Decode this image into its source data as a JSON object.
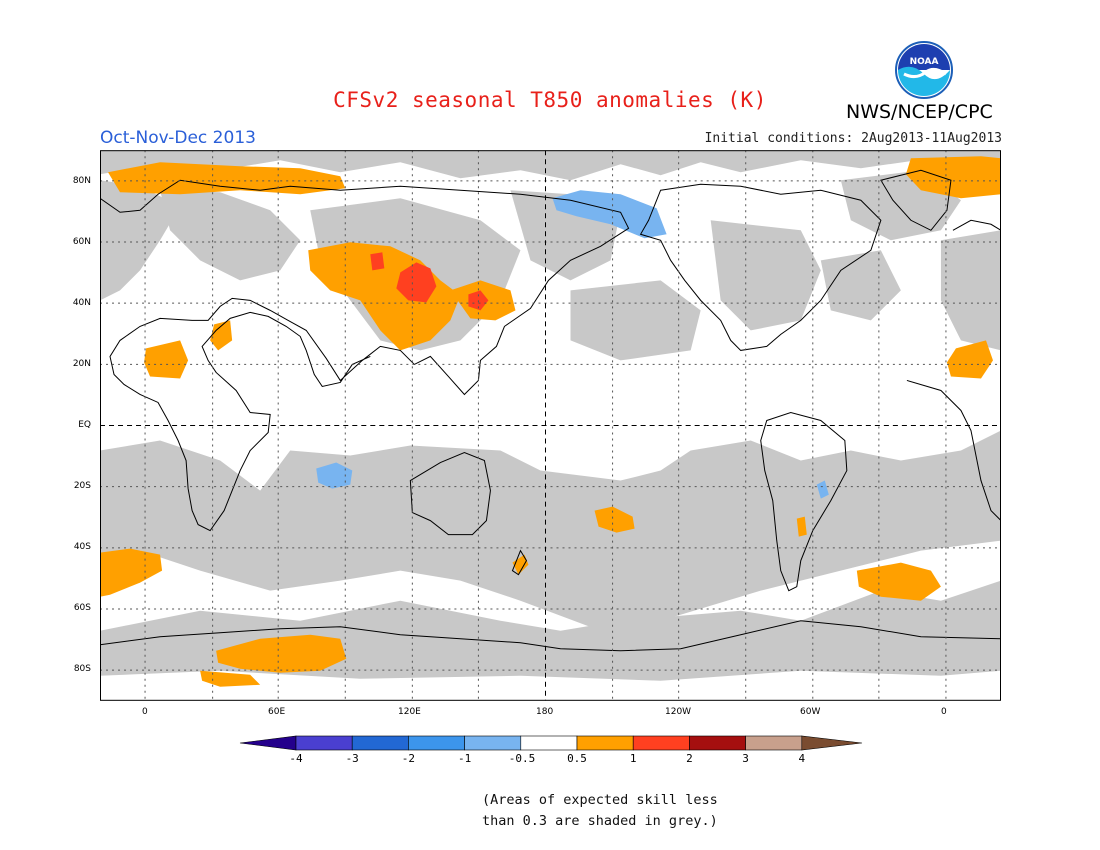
{
  "header": {
    "title": "CFSv2 seasonal T850 anomalies (K)",
    "agency": "NWS/NCEP/CPC",
    "logo_text": "NOAA",
    "season": "Oct-Nov-Dec 2013",
    "initial_conditions": "Initial conditions: 2Aug2013-11Aug2013"
  },
  "map": {
    "projection": "cylindrical equidistant",
    "lat_labels": [
      "80N",
      "60N",
      "40N",
      "20N",
      "EQ",
      "20S",
      "40S",
      "60S",
      "80S"
    ],
    "lon_labels": [
      "0",
      "60E",
      "120E",
      "180",
      "120W",
      "60W",
      "0"
    ],
    "colors": {
      "skill_mask": "#c8c8c8",
      "pos_0_5_1": "#ffa000",
      "pos_1_2": "#ff4020",
      "neg_0_5_1": "#78b4f0",
      "coast": "#000000",
      "grid": "#555555"
    },
    "regions": [
      {
        "name": "Arctic north Atlantic/Europe",
        "anomaly": "0.5 to 1"
      },
      {
        "name": "Greenland",
        "anomaly": "0.5 to 1"
      },
      {
        "name": "Central Asia / Mongolia",
        "anomaly": "0.5 to 1"
      },
      {
        "name": "Northeast China / Korea",
        "anomaly": "1 to 2"
      },
      {
        "name": "Northwest Pacific off Japan",
        "anomaly": "0.5 to 2"
      },
      {
        "name": "North Africa / Sahara",
        "anomaly": "0.5 to 1"
      },
      {
        "name": "Eastern tropical Atlantic",
        "anomaly": "0.5 to 1"
      },
      {
        "name": "South Atlantic",
        "anomaly": "0.5 to 1"
      },
      {
        "name": "South Pacific",
        "anomaly": "0.5 to 1"
      },
      {
        "name": "East Antarctica coast",
        "anomaly": "0.5 to 1"
      },
      {
        "name": "Bering Strait / Alaska",
        "anomaly": "-1 to -0.5"
      },
      {
        "name": "Eastern Indian Ocean",
        "anomaly": "-1 to -0.5"
      }
    ]
  },
  "colorbar": {
    "labels": [
      "-4",
      "-3",
      "-2",
      "-1",
      "-0.5",
      "0.5",
      "1",
      "2",
      "3",
      "4"
    ],
    "colors": [
      "#24008c",
      "#4a3fd0",
      "#2268d4",
      "#3c95ec",
      "#78b4f0",
      "#ffffff",
      "#ffa000",
      "#ff4020",
      "#a50f0f",
      "#c8a08c",
      "#7a4c30"
    ]
  },
  "notes": {
    "line1": "(Areas of expected skill less",
    "line2": "than 0.3 are shaded in grey.)"
  }
}
